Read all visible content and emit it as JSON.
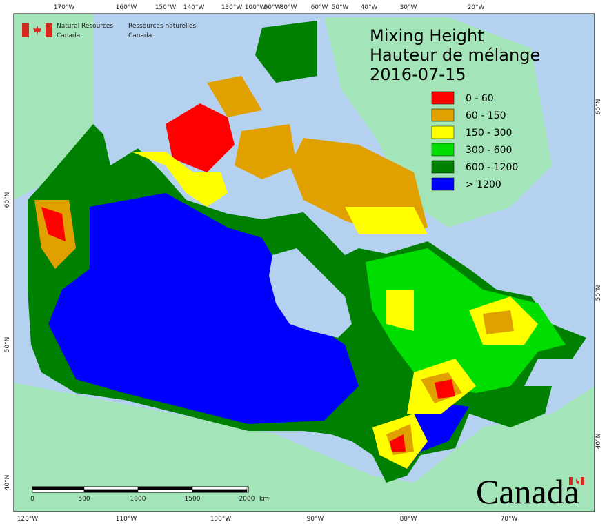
{
  "header": {
    "agency_en": [
      "Natural Resources",
      "Canada"
    ],
    "agency_fr": [
      "Ressources naturelles",
      "Canada"
    ]
  },
  "title": [
    "Mixing Height",
    "Hauteur de mélange",
    "2016-07-15"
  ],
  "legend": [
    {
      "label": "0 - 60",
      "color": "#ff0000"
    },
    {
      "label": "60 - 150",
      "color": "#e0a000"
    },
    {
      "label": "150 - 300",
      "color": "#ffff00"
    },
    {
      "label": "300 - 600",
      "color": "#00dd00"
    },
    {
      "label": "600 - 1200",
      "color": "#008000"
    },
    {
      "label": "> 1200",
      "color": "#0000ff"
    }
  ],
  "graticule": {
    "top": [
      "170°W",
      "160°W",
      "150°W",
      "140°W",
      "130°W",
      "100°W",
      "90°W",
      "80°W",
      "60°W",
      "50°W",
      "40°W",
      "30°W",
      "20°W"
    ],
    "bottom": [
      "120°W",
      "110°W",
      "100°W",
      "90°W",
      "80°W",
      "70°W"
    ],
    "left": [
      "60°N",
      "50°N",
      "40°N"
    ],
    "right": [
      "60°N",
      "50°N",
      "40°N"
    ]
  },
  "scale_bar": {
    "labels": [
      "0",
      "500",
      "1000",
      "1500",
      "2000"
    ],
    "unit": "km"
  },
  "wordmark": "Canada"
}
